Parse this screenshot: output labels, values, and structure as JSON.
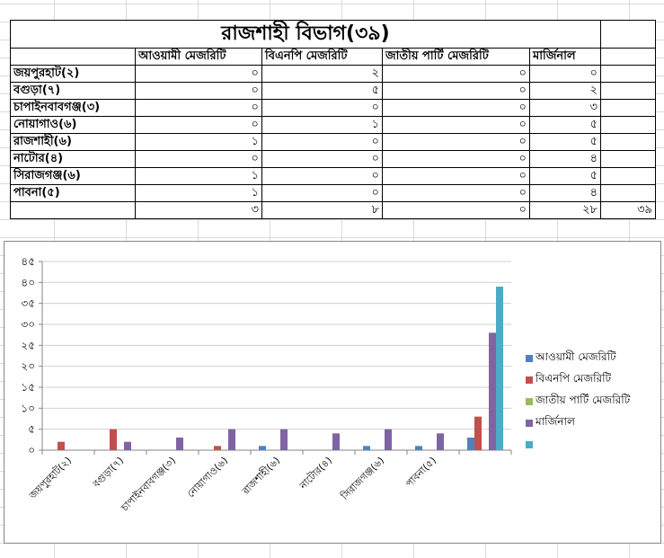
{
  "sheet": {
    "title": "রাজশাহী বিভাগ(৩৯)",
    "headers": [
      "আওয়ামী মেজরিটি",
      "বিএনপি মেজরিটি",
      "জাতীয় পার্টি মেজরিটি",
      "মার্জিনাল"
    ],
    "rows": [
      {
        "name": "জয়পুরহাট(২)",
        "values": [
          "০",
          "২",
          "০",
          "০"
        ]
      },
      {
        "name": "বগুড়া(৭)",
        "values": [
          "০",
          "৫",
          "০",
          "২"
        ]
      },
      {
        "name": "চাপাইনবাবগঞ্জ(৩)",
        "values": [
          "০",
          "০",
          "০",
          "৩"
        ]
      },
      {
        "name": "নোয়াগাও(৬)",
        "values": [
          "০",
          "১",
          "০",
          "৫"
        ]
      },
      {
        "name": "রাজশাহী(৬)",
        "values": [
          "১",
          "০",
          "০",
          "৫"
        ]
      },
      {
        "name": "নাটোর(৪)",
        "values": [
          "০",
          "০",
          "০",
          "৪"
        ]
      },
      {
        "name": "সিরাজগঞ্জ(৬)",
        "values": [
          "১",
          "০",
          "০",
          "৫"
        ]
      },
      {
        "name": "পাবনা(৫)",
        "values": [
          "১",
          "০",
          "০",
          "৪"
        ]
      }
    ],
    "totals": [
      "৩",
      "৮",
      "০",
      "২৮",
      "৩৯"
    ]
  },
  "chart_data": {
    "type": "bar",
    "categories": [
      "জয়পুরহাট(২)",
      "বগুড়া(৭)",
      "চাপাইনবাবগঞ্জ(৩)",
      "নোয়াগাও(৬)",
      "রাজশাহী(৬)",
      "নাটোর(৪)",
      "সিরাজগঞ্জ(৬)",
      "পাবনা(৫)",
      ""
    ],
    "series": [
      {
        "name": "আওয়ামী মেজরিটি",
        "color": "#4f81bd",
        "values": [
          0,
          0,
          0,
          0,
          1,
          0,
          1,
          1,
          3
        ]
      },
      {
        "name": "বিএনপি মেজরিটি",
        "color": "#c0504d",
        "values": [
          2,
          5,
          0,
          1,
          0,
          0,
          0,
          0,
          8
        ]
      },
      {
        "name": "জাতীয় পার্টি মেজরিটি",
        "color": "#9bbb59",
        "values": [
          0,
          0,
          0,
          0,
          0,
          0,
          0,
          0,
          0
        ]
      },
      {
        "name": "মার্জিনাল",
        "color": "#8064a2",
        "values": [
          0,
          2,
          3,
          5,
          5,
          4,
          5,
          4,
          28
        ]
      },
      {
        "name": "",
        "color": "#4bacc6",
        "values": [
          0,
          0,
          0,
          0,
          0,
          0,
          0,
          0,
          39
        ]
      }
    ],
    "ylim": [
      0,
      45
    ],
    "yticks": [
      "০",
      "৫",
      "১০",
      "১৫",
      "২০",
      "২৫",
      "৩০",
      "৩৫",
      "৪০",
      "৪৫"
    ],
    "grid": true,
    "legend": "right",
    "title": "",
    "xlabel": "",
    "ylabel": ""
  }
}
